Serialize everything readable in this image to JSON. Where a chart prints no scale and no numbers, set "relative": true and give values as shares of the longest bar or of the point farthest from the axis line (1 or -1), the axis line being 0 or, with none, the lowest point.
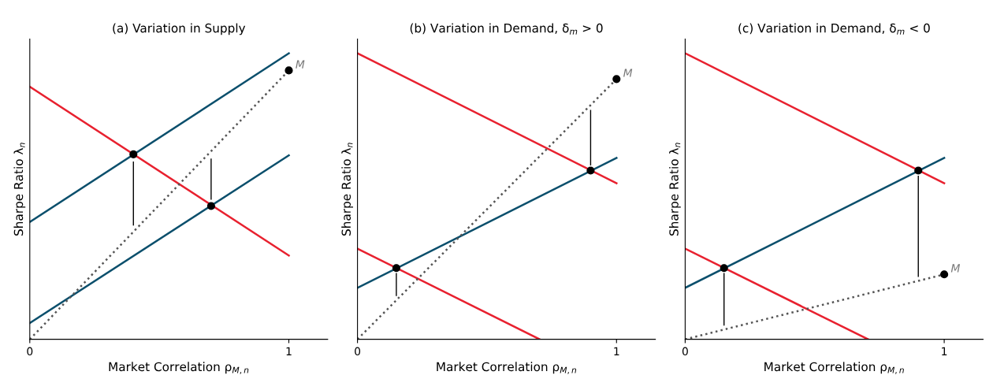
{
  "chart_data": [
    {
      "type": "line",
      "title": "(a) Variation in Supply",
      "xlabel": "Market Correlation ρ$_{M,n}$",
      "ylabel": "Sharpe Ratio λ$_{n}$",
      "relative": true,
      "xlim": [
        0,
        1.15
      ],
      "xticks": [
        0,
        1
      ],
      "grid": false,
      "series": [
        {
          "color": "#0b4f6c",
          "x": [
            0,
            1
          ],
          "values": [
            0.41,
            1.0
          ]
        },
        {
          "color": "#0b4f6c",
          "x": [
            0,
            1
          ],
          "values": [
            0.057,
            0.643
          ]
        },
        {
          "color": "#e8212f",
          "x": [
            0,
            1
          ],
          "values": [
            0.883,
            0.293
          ]
        },
        {
          "color": "#555555",
          "line_style": "dotted",
          "x": [
            0,
            1
          ],
          "values": [
            0,
            0.94
          ]
        },
        {
          "color": "#000000",
          "x": [
            0.4,
            0.4
          ],
          "values": [
            0.4,
            0.62
          ]
        },
        {
          "color": "#000000",
          "x": [
            0.7,
            0.7
          ],
          "values": [
            0.63,
            0.49
          ]
        },
        {
          "type": "scatter",
          "color": "#000000",
          "marker": "circle",
          "x": [
            0.4,
            0.7
          ],
          "values": [
            0.647,
            0.466
          ]
        },
        {
          "type": "scatter",
          "name": "M",
          "color": "#000000",
          "marker": "circle",
          "x": [
            1
          ],
          "values": [
            0.94
          ]
        }
      ]
    },
    {
      "type": "line",
      "title": "(b) Variation in Demand, δ$_{m}$ > 0",
      "xlabel": "Market Correlation ρ$_{M,n}$",
      "ylabel": "Sharpe Ratio λ$_{n}$",
      "relative": true,
      "xlim": [
        0,
        1.15
      ],
      "xticks": [
        0,
        1
      ],
      "grid": false,
      "series": [
        {
          "color": "#e8212f",
          "x": [
            0,
            1
          ],
          "values": [
            1.0,
            0.546
          ]
        },
        {
          "color": "#0b4f6c",
          "x": [
            0,
            1
          ],
          "values": [
            0.18,
            0.634
          ]
        },
        {
          "color": "#e8212f",
          "x": [
            0,
            0.703
          ],
          "values": [
            0.317,
            0
          ]
        },
        {
          "color": "#555555",
          "line_style": "dotted",
          "x": [
            0,
            1
          ],
          "values": [
            0,
            0.91
          ]
        },
        {
          "color": "#000000",
          "x": [
            0.15,
            0.15
          ],
          "values": [
            0.153,
            0.23
          ]
        },
        {
          "color": "#000000",
          "x": [
            0.9,
            0.9
          ],
          "values": [
            0.8,
            0.61
          ]
        },
        {
          "type": "scatter",
          "color": "#000000",
          "marker": "circle",
          "x": [
            0.15,
            0.9
          ],
          "values": [
            0.249,
            0.59
          ]
        },
        {
          "type": "scatter",
          "name": "M",
          "color": "#000000",
          "marker": "circle",
          "x": [
            1
          ],
          "values": [
            0.91
          ]
        }
      ]
    },
    {
      "type": "line",
      "title": "(c) Variation in Demand, δ$_{m}$ < 0",
      "xlabel": "Market Correlation ρ$_{M,n}$",
      "ylabel": "Sharpe Ratio λ$_{n}$",
      "relative": true,
      "xlim": [
        0,
        1.15
      ],
      "xticks": [
        0,
        1
      ],
      "grid": false,
      "series": [
        {
          "color": "#e8212f",
          "x": [
            0,
            1
          ],
          "values": [
            1.0,
            0.546
          ]
        },
        {
          "color": "#0b4f6c",
          "x": [
            0,
            1
          ],
          "values": [
            0.18,
            0.634
          ]
        },
        {
          "color": "#e8212f",
          "x": [
            0,
            0.706
          ],
          "values": [
            0.317,
            0
          ]
        },
        {
          "color": "#555555",
          "line_style": "dotted",
          "x": [
            0,
            1
          ],
          "values": [
            0,
            0.227
          ]
        },
        {
          "color": "#000000",
          "x": [
            0.15,
            0.15
          ],
          "values": [
            0.05,
            0.23
          ]
        },
        {
          "color": "#000000",
          "x": [
            0.9,
            0.9
          ],
          "values": [
            0.22,
            0.57
          ]
        },
        {
          "type": "scatter",
          "color": "#000000",
          "marker": "circle",
          "x": [
            0.15,
            0.9
          ],
          "values": [
            0.249,
            0.59
          ]
        },
        {
          "type": "scatter",
          "name": "M",
          "color": "#000000",
          "marker": "circle",
          "x": [
            1
          ],
          "values": [
            0.227
          ]
        }
      ]
    }
  ]
}
